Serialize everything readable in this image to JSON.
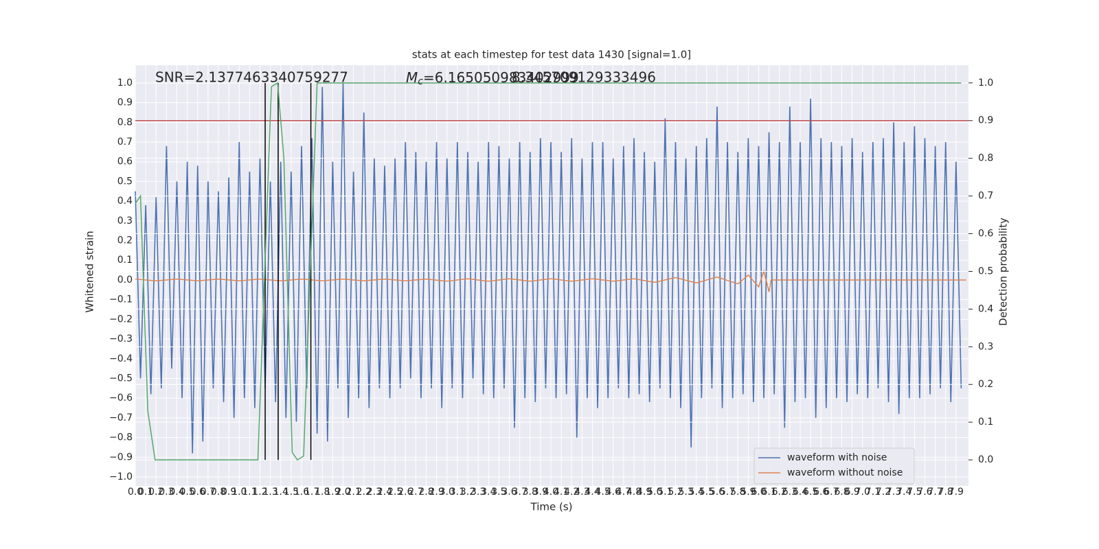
{
  "chart_data": {
    "type": "line",
    "title": "stats at each timestep for test data 1430 [signal=1.0]",
    "x_label": "Time (s)",
    "y_label": "Whitened strain",
    "y2_label": "Detection probability",
    "annotations": [
      "SNR=2.1377463340759277",
      "8.345709129333496"
    ],
    "mc_label": {
      "symbol": "M",
      "subscript": "c",
      "text": "=6.165050983402999"
    },
    "grid": true,
    "legend": "lower right",
    "xlim": [
      0,
      8.02
    ],
    "ylim": [
      -1.045,
      1.09
    ],
    "y2lim": [
      -0.069,
      1.047
    ],
    "xticks": [
      {
        "value": 0,
        "label": "0.0"
      },
      {
        "value": 0.1,
        "label": "0.1"
      },
      {
        "value": 0.2,
        "label": "0.2"
      },
      {
        "value": 0.3,
        "label": "0.3"
      },
      {
        "value": 0.4,
        "label": "0.4"
      },
      {
        "value": 0.5,
        "label": "0.5"
      },
      {
        "value": 0.6,
        "label": "0.6"
      },
      {
        "value": 0.7,
        "label": "0.7"
      },
      {
        "value": 0.8,
        "label": "0.8"
      },
      {
        "value": 0.9,
        "label": "0.9"
      },
      {
        "value": 1,
        "label": "1.0"
      },
      {
        "value": 1.1,
        "label": "1.1"
      },
      {
        "value": 1.2,
        "label": "1.2"
      },
      {
        "value": 1.3,
        "label": "1.3"
      },
      {
        "value": 1.4,
        "label": "1.4"
      },
      {
        "value": 1.5,
        "label": "1.5"
      },
      {
        "value": 1.6,
        "label": "1.6"
      },
      {
        "value": 1.7,
        "label": "1.7"
      },
      {
        "value": 1.8,
        "label": "1.8"
      },
      {
        "value": 1.9,
        "label": "1.9"
      },
      {
        "value": 2,
        "label": "2.0"
      },
      {
        "value": 2.1,
        "label": "2.1"
      },
      {
        "value": 2.2,
        "label": "2.2"
      },
      {
        "value": 2.3,
        "label": "2.3"
      },
      {
        "value": 2.4,
        "label": "2.4"
      },
      {
        "value": 2.5,
        "label": "2.5"
      },
      {
        "value": 2.6,
        "label": "2.6"
      },
      {
        "value": 2.7,
        "label": "2.7"
      },
      {
        "value": 2.8,
        "label": "2.8"
      },
      {
        "value": 2.9,
        "label": "2.9"
      },
      {
        "value": 3,
        "label": "3.0"
      },
      {
        "value": 3.1,
        "label": "3.1"
      },
      {
        "value": 3.2,
        "label": "3.2"
      },
      {
        "value": 3.3,
        "label": "3.3"
      },
      {
        "value": 3.4,
        "label": "3.4"
      },
      {
        "value": 3.5,
        "label": "3.5"
      },
      {
        "value": 3.6,
        "label": "3.6"
      },
      {
        "value": 3.7,
        "label": "3.7"
      },
      {
        "value": 3.8,
        "label": "3.8"
      },
      {
        "value": 3.9,
        "label": "3.9"
      },
      {
        "value": 4,
        "label": "4.0"
      },
      {
        "value": 4.1,
        "label": "4.1"
      },
      {
        "value": 4.2,
        "label": "4.2"
      },
      {
        "value": 4.3,
        "label": "4.3"
      },
      {
        "value": 4.4,
        "label": "4.4"
      },
      {
        "value": 4.5,
        "label": "4.5"
      },
      {
        "value": 4.6,
        "label": "4.6"
      },
      {
        "value": 4.7,
        "label": "4.7"
      },
      {
        "value": 4.8,
        "label": "4.8"
      },
      {
        "value": 4.9,
        "label": "4.9"
      },
      {
        "value": 5,
        "label": "5.0"
      },
      {
        "value": 5.1,
        "label": "5.1"
      },
      {
        "value": 5.2,
        "label": "5.2"
      },
      {
        "value": 5.3,
        "label": "5.3"
      },
      {
        "value": 5.4,
        "label": "5.4"
      },
      {
        "value": 5.5,
        "label": "5.5"
      },
      {
        "value": 5.6,
        "label": "5.6"
      },
      {
        "value": 5.7,
        "label": "5.7"
      },
      {
        "value": 5.8,
        "label": "5.8"
      },
      {
        "value": 5.9,
        "label": "5.9"
      },
      {
        "value": 6,
        "label": "6.0"
      },
      {
        "value": 6.1,
        "label": "6.1"
      },
      {
        "value": 6.2,
        "label": "6.2"
      },
      {
        "value": 6.3,
        "label": "6.3"
      },
      {
        "value": 6.4,
        "label": "6.4"
      },
      {
        "value": 6.5,
        "label": "6.5"
      },
      {
        "value": 6.6,
        "label": "6.6"
      },
      {
        "value": 6.7,
        "label": "6.7"
      },
      {
        "value": 6.8,
        "label": "6.8"
      },
      {
        "value": 6.9,
        "label": "6.9"
      },
      {
        "value": 7,
        "label": "7.0"
      },
      {
        "value": 7.1,
        "label": "7.1"
      },
      {
        "value": 7.2,
        "label": "7.2"
      },
      {
        "value": 7.3,
        "label": "7.3"
      },
      {
        "value": 7.4,
        "label": "7.4"
      },
      {
        "value": 7.5,
        "label": "7.5"
      },
      {
        "value": 7.6,
        "label": "7.6"
      },
      {
        "value": 7.7,
        "label": "7.7"
      },
      {
        "value": 7.8,
        "label": "7.8"
      },
      {
        "value": 7.9,
        "label": "7.9"
      }
    ],
    "yticks": [
      {
        "value": -1,
        "label": "−1.0"
      },
      {
        "value": -0.9,
        "label": "−0.9"
      },
      {
        "value": -0.8,
        "label": "−0.8"
      },
      {
        "value": -0.7,
        "label": "−0.7"
      },
      {
        "value": -0.6,
        "label": "−0.6"
      },
      {
        "value": -0.5,
        "label": "−0.5"
      },
      {
        "value": -0.4,
        "label": "−0.4"
      },
      {
        "value": -0.3,
        "label": "−0.3"
      },
      {
        "value": -0.2,
        "label": "−0.2"
      },
      {
        "value": -0.1,
        "label": "−0.1"
      },
      {
        "value": 0,
        "label": "0.0"
      },
      {
        "value": 0.1,
        "label": "0.1"
      },
      {
        "value": 0.2,
        "label": "0.2"
      },
      {
        "value": 0.3,
        "label": "0.3"
      },
      {
        "value": 0.4,
        "label": "0.4"
      },
      {
        "value": 0.5,
        "label": "0.5"
      },
      {
        "value": 0.6,
        "label": "0.6"
      },
      {
        "value": 0.7,
        "label": "0.7"
      },
      {
        "value": 0.8,
        "label": "0.8"
      },
      {
        "value": 0.9,
        "label": "0.9"
      },
      {
        "value": 1,
        "label": "1.0"
      }
    ],
    "y2ticks": [
      {
        "value": 0,
        "label": "0.0"
      },
      {
        "value": 0.1,
        "label": "0.1"
      },
      {
        "value": 0.2,
        "label": "0.2"
      },
      {
        "value": 0.3,
        "label": "0.3"
      },
      {
        "value": 0.4,
        "label": "0.4"
      },
      {
        "value": 0.5,
        "label": "0.5"
      },
      {
        "value": 0.6,
        "label": "0.6"
      },
      {
        "value": 0.7,
        "label": "0.7"
      },
      {
        "value": 0.8,
        "label": "0.8"
      },
      {
        "value": 0.9,
        "label": "0.9"
      },
      {
        "value": 1,
        "label": "1.0"
      }
    ],
    "threshold": {
      "value": 0.9,
      "axis": "y2",
      "color": "#c44e52"
    },
    "markers": {
      "x": [
        1.25,
        1.375,
        1.69
      ],
      "span": [
        0,
        1
      ],
      "axis": "y2",
      "color": "#000000"
    },
    "series": [
      {
        "name": "waveform with noise",
        "color": "#4c72b0",
        "legend": true,
        "x": [
          0,
          0.05,
          0.1,
          0.15,
          0.2,
          0.25,
          0.3,
          0.35,
          0.4,
          0.45,
          0.5,
          0.55,
          0.6,
          0.65,
          0.7,
          0.75,
          0.8,
          0.85,
          0.9,
          0.95,
          1,
          1.05,
          1.1,
          1.15,
          1.2,
          1.25,
          1.3,
          1.35,
          1.4,
          1.45,
          1.5,
          1.55,
          1.6,
          1.65,
          1.7,
          1.75,
          1.8,
          1.85,
          1.9,
          1.95,
          2,
          2.05,
          2.1,
          2.15,
          2.2,
          2.25,
          2.3,
          2.35,
          2.4,
          2.45,
          2.5,
          2.55,
          2.6,
          2.65,
          2.7,
          2.75,
          2.8,
          2.85,
          2.9,
          2.95,
          3,
          3.05,
          3.1,
          3.15,
          3.2,
          3.25,
          3.3,
          3.35,
          3.4,
          3.45,
          3.5,
          3.55,
          3.6,
          3.65,
          3.7,
          3.75,
          3.8,
          3.85,
          3.9,
          3.95,
          4,
          4.05,
          4.1,
          4.15,
          4.2,
          4.25,
          4.3,
          4.35,
          4.4,
          4.45,
          4.5,
          4.55,
          4.6,
          4.65,
          4.7,
          4.75,
          4.8,
          4.85,
          4.9,
          4.95,
          5,
          5.05,
          5.1,
          5.15,
          5.2,
          5.25,
          5.3,
          5.35,
          5.4,
          5.45,
          5.5,
          5.55,
          5.6,
          5.65,
          5.7,
          5.75,
          5.8,
          5.85,
          5.9,
          5.95,
          6,
          6.05,
          6.1,
          6.15,
          6.2,
          6.25,
          6.3,
          6.35,
          6.4,
          6.45,
          6.5,
          6.55,
          6.6,
          6.65,
          6.7,
          6.75,
          6.8,
          6.85,
          6.9,
          6.95,
          7,
          7.05,
          7.1,
          7.15,
          7.2,
          7.25,
          7.3,
          7.35,
          7.4,
          7.45,
          7.5,
          7.55,
          7.6,
          7.65,
          7.7,
          7.75,
          7.8,
          7.85,
          7.9,
          7.95
        ],
        "values": [
          0.45,
          -0.5,
          0.38,
          -0.58,
          0.42,
          -0.55,
          0.68,
          -0.45,
          0.5,
          -0.6,
          0.6,
          -0.88,
          0.58,
          -0.82,
          0.5,
          -0.55,
          0.45,
          -0.62,
          0.52,
          -0.7,
          0.7,
          -0.6,
          0.55,
          -0.65,
          0.62,
          -0.55,
          0.5,
          -0.62,
          0.6,
          -0.7,
          0.55,
          -0.72,
          0.68,
          -0.55,
          0.72,
          -0.78,
          0.98,
          -0.82,
          0.6,
          -0.55,
          1.0,
          -0.7,
          0.55,
          -0.6,
          0.85,
          -0.65,
          0.62,
          -0.55,
          0.58,
          -0.6,
          0.62,
          -0.55,
          0.7,
          -0.5,
          0.65,
          -0.6,
          0.6,
          -0.55,
          0.7,
          -0.65,
          0.62,
          -0.55,
          0.7,
          -0.6,
          0.65,
          -0.5,
          0.6,
          -0.58,
          0.7,
          -0.6,
          0.68,
          -0.55,
          0.62,
          -0.75,
          0.7,
          -0.6,
          0.65,
          -0.62,
          0.72,
          -0.55,
          0.7,
          -0.6,
          0.65,
          -0.58,
          0.72,
          -0.8,
          0.62,
          -0.6,
          0.7,
          -0.65,
          0.7,
          -0.6,
          0.62,
          -0.55,
          0.68,
          -0.6,
          0.72,
          -0.58,
          0.65,
          -0.62,
          0.6,
          -0.55,
          0.82,
          -0.6,
          0.7,
          -0.65,
          0.62,
          -0.85,
          0.68,
          -0.6,
          0.72,
          -0.55,
          0.88,
          -0.65,
          0.7,
          -0.6,
          0.65,
          -0.58,
          0.72,
          -0.62,
          0.68,
          -0.6,
          0.75,
          -0.58,
          0.7,
          -0.75,
          0.88,
          -0.62,
          0.7,
          -0.6,
          0.92,
          -0.7,
          0.72,
          -0.65,
          0.7,
          -0.6,
          0.68,
          -0.62,
          0.72,
          -0.58,
          0.65,
          -0.6,
          0.7,
          -0.55,
          0.72,
          -0.62,
          0.8,
          -0.68,
          0.7,
          -0.6,
          0.78,
          -0.6,
          0.72,
          -0.58,
          0.68,
          -0.55,
          0.7,
          -0.62,
          0.6,
          -0.55
        ]
      },
      {
        "name": "waveform without noise",
        "color": "#dd8452",
        "legend": true,
        "x": [
          0,
          0.2,
          0.4,
          0.6,
          0.8,
          1,
          1.2,
          1.4,
          1.6,
          1.8,
          2,
          2.2,
          2.4,
          2.6,
          2.8,
          3,
          3.2,
          3.4,
          3.6,
          3.8,
          4,
          4.2,
          4.4,
          4.6,
          4.8,
          5,
          5.2,
          5.4,
          5.6,
          5.8,
          5.9,
          6,
          6.05,
          6.1,
          6.12,
          8
        ],
        "values": [
          0.004,
          -0.004,
          0.004,
          -0.004,
          0.004,
          -0.004,
          0.004,
          -0.004,
          0.004,
          -0.004,
          0.004,
          -0.004,
          0.004,
          -0.004,
          0.004,
          -0.006,
          0.006,
          -0.006,
          0.006,
          -0.006,
          0.006,
          -0.006,
          0.006,
          -0.006,
          0.006,
          -0.012,
          0.012,
          -0.015,
          0.015,
          -0.02,
          0.025,
          -0.035,
          0.045,
          -0.06,
          0,
          0
        ]
      },
      {
        "name": "detection probability",
        "color": "#55a868",
        "axis": "y2",
        "legend": false,
        "x": [
          0,
          0.05,
          0.12,
          0.19,
          1.18,
          1.31,
          1.37,
          1.43,
          1.51,
          1.56,
          1.62,
          1.75,
          7.95
        ],
        "values": [
          0.68,
          0.7,
          0.13,
          0,
          0,
          0.99,
          1.0,
          0.8,
          0.02,
          0,
          0.01,
          1.0,
          1.0
        ]
      }
    ]
  }
}
